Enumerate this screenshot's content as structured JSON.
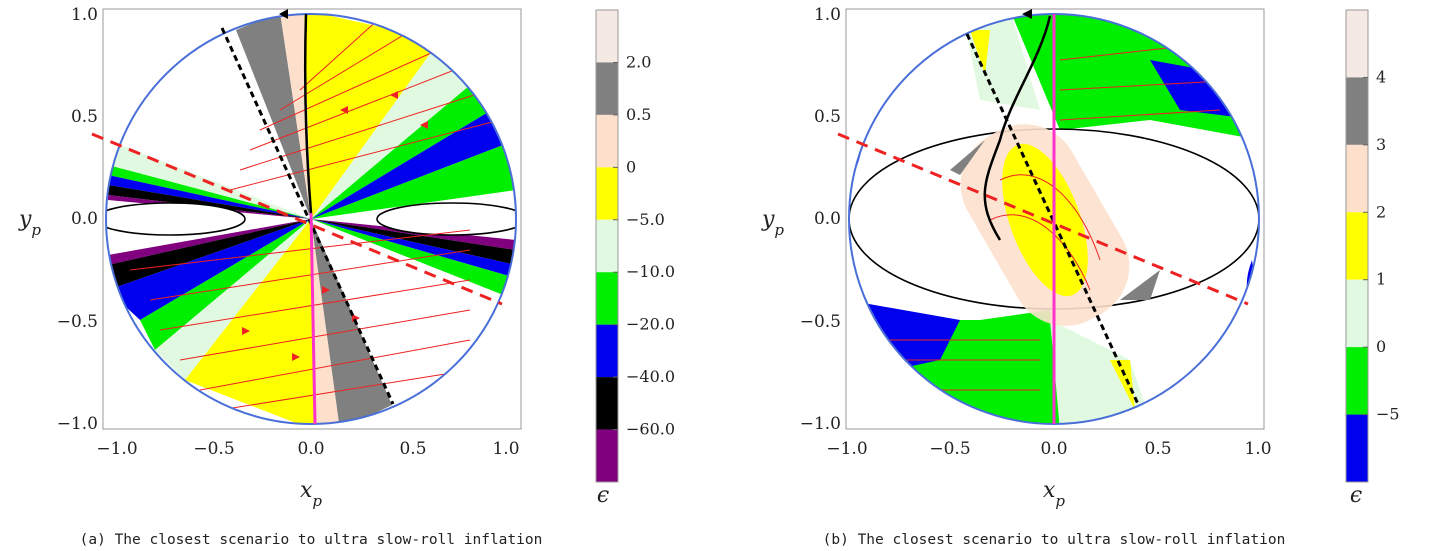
{
  "chart_data": [
    {
      "type": "contour",
      "xlabel": "x_p",
      "ylabel": "y_p",
      "xlim": [
        -1.0,
        1.0
      ],
      "ylim": [
        -1.0,
        1.0
      ],
      "xticks": [
        "−1.0",
        "−0.5",
        "0.0",
        "0.5",
        "1.0"
      ],
      "yticks": [
        "−1.0",
        "−0.5",
        "0.0",
        "0.5",
        "1.0"
      ],
      "colorbar": {
        "label": "ϵ",
        "tick_labels": [
          "2.0",
          "0.5",
          "0",
          "−5.0",
          "−10.0",
          "−20.0",
          "−40.0",
          "−60.0"
        ],
        "bands": [
          "#f4e9e3",
          "#808080",
          "#fde0cc",
          "#ffff00",
          "#e1f9e1",
          "#00ee00",
          "#0000ee",
          "#000000",
          "#800080"
        ]
      },
      "lines": [
        {
          "style": "dashed",
          "color": "#000000",
          "from": [
            -0.43,
            0.93
          ],
          "to": [
            0.4,
            -0.92
          ]
        },
        {
          "style": "dashed",
          "color": "#ee2222",
          "from": [
            -1.0,
            0.42
          ],
          "to": [
            0.95,
            -0.4
          ]
        },
        {
          "style": "solid",
          "color": "#ff33cc",
          "from": [
            0.0,
            0.03
          ],
          "to": [
            0.02,
            -1.0
          ]
        }
      ],
      "caption": "(a) The closest scenario to ultra slow-roll inflation"
    },
    {
      "type": "contour",
      "xlabel": "x_p",
      "ylabel": "y_p",
      "xlim": [
        -1.0,
        1.0
      ],
      "ylim": [
        -1.0,
        1.0
      ],
      "xticks": [
        "−1.0",
        "−0.5",
        "0.0",
        "0.5",
        "1.0"
      ],
      "yticks": [
        "−1.0",
        "−0.5",
        "0.0",
        "0.5",
        "1.0"
      ],
      "colorbar": {
        "label": "ϵ",
        "tick_labels": [
          "4",
          "3",
          "2",
          "1",
          "0",
          "−5"
        ],
        "bands": [
          "#f4e9e3",
          "#808080",
          "#fde0cc",
          "#ffff00",
          "#e1f9e1",
          "#00ee00",
          "#0000ee"
        ]
      },
      "lines": [
        {
          "style": "dashed",
          "color": "#000000",
          "from": [
            -0.43,
            0.93
          ],
          "to": [
            0.4,
            -0.92
          ]
        },
        {
          "style": "dashed",
          "color": "#ee2222",
          "from": [
            -1.0,
            0.42
          ],
          "to": [
            0.95,
            -0.4
          ]
        },
        {
          "style": "solid",
          "color": "#ff33cc",
          "from": [
            0.0,
            1.0
          ],
          "to": [
            0.0,
            -1.0
          ]
        }
      ],
      "caption": "(b) The closest scenario to ultra slow-roll inflation"
    }
  ]
}
